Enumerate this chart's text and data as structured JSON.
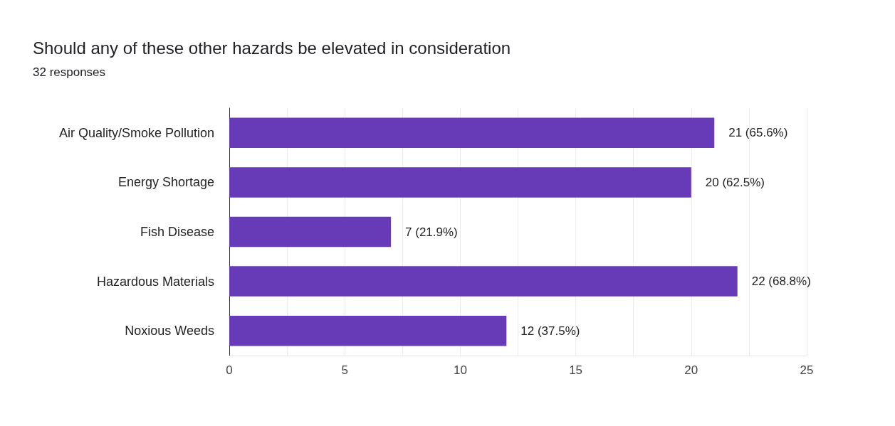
{
  "chart_data": {
    "type": "bar",
    "orientation": "horizontal",
    "title": "Should any of these other hazards be elevated in consideration",
    "subtitle": "32 responses",
    "categories": [
      "Air Quality/Smoke Pollution",
      "Energy Shortage",
      "Fish Disease",
      "Hazardous Materials",
      "Noxious Weeds"
    ],
    "values": [
      21,
      20,
      7,
      22,
      12
    ],
    "value_labels": [
      "21 (65.6%)",
      "20 (62.5%)",
      "7 (21.9%)",
      "22 (68.8%)",
      "12 (37.5%)"
    ],
    "color": "#673ab7",
    "xlim": [
      0,
      25
    ],
    "xticks": [
      0,
      {
        "value": 2.5,
        "label": null
      },
      5,
      {
        "value": 7.5,
        "label": null
      },
      10,
      {
        "value": 12.5,
        "label": null
      },
      15,
      {
        "value": 17.5,
        "label": null
      },
      20,
      {
        "value": 22.5,
        "label": null
      },
      25
    ],
    "grid": "x"
  }
}
